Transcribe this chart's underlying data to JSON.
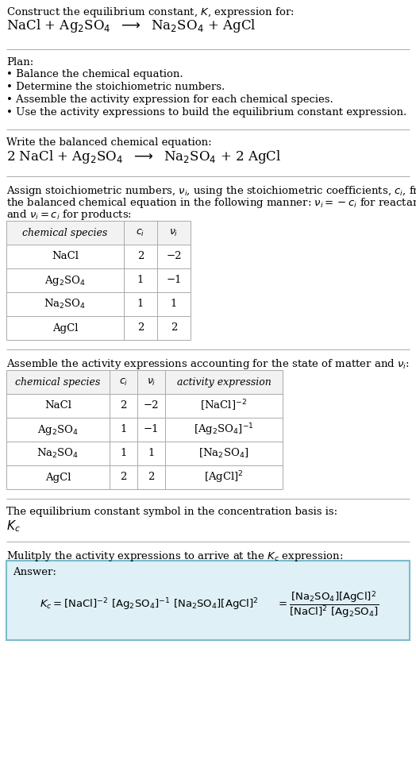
{
  "bg_color": "#ffffff",
  "text_color": "#000000",
  "title_line1": "Construct the equilibrium constant, $K$, expression for:",
  "title_line2": "NaCl + Ag$_2$SO$_4$  $\\longrightarrow$  Na$_2$SO$_4$ + AgCl",
  "plan_header": "Plan:",
  "plan_items": [
    "• Balance the chemical equation.",
    "• Determine the stoichiometric numbers.",
    "• Assemble the activity expression for each chemical species.",
    "• Use the activity expressions to build the equilibrium constant expression."
  ],
  "balanced_header": "Write the balanced chemical equation:",
  "balanced_eq": "2 NaCl + Ag$_2$SO$_4$  $\\longrightarrow$  Na$_2$SO$_4$ + 2 AgCl",
  "stoich_intro_l1": "Assign stoichiometric numbers, $\\nu_i$, using the stoichiometric coefficients, $c_i$, from",
  "stoich_intro_l2": "the balanced chemical equation in the following manner: $\\nu_i = -c_i$ for reactants",
  "stoich_intro_l3": "and $\\nu_i = c_i$ for products:",
  "table1_headers": [
    "chemical species",
    "$c_i$",
    "$\\nu_i$"
  ],
  "table1_rows": [
    [
      "NaCl",
      "2",
      "−2"
    ],
    [
      "Ag$_2$SO$_4$",
      "1",
      "−1"
    ],
    [
      "Na$_2$SO$_4$",
      "1",
      "1"
    ],
    [
      "AgCl",
      "2",
      "2"
    ]
  ],
  "activity_intro": "Assemble the activity expressions accounting for the state of matter and $\\nu_i$:",
  "table2_headers": [
    "chemical species",
    "$c_i$",
    "$\\nu_i$",
    "activity expression"
  ],
  "table2_rows": [
    [
      "NaCl",
      "2",
      "−2",
      "[NaCl]$^{-2}$"
    ],
    [
      "Ag$_2$SO$_4$",
      "1",
      "−1",
      "[Ag$_2$SO$_4$]$^{-1}$"
    ],
    [
      "Na$_2$SO$_4$",
      "1",
      "1",
      "[Na$_2$SO$_4$]"
    ],
    [
      "AgCl",
      "2",
      "2",
      "[AgCl]$^2$"
    ]
  ],
  "kc_intro": "The equilibrium constant symbol in the concentration basis is:",
  "kc_symbol": "$K_c$",
  "multiply_intro": "Mulitply the activity expressions to arrive at the $K_c$ expression:",
  "answer_box_color": "#dff0f7",
  "answer_box_border": "#7bbccc",
  "answer_label": "Answer:",
  "font_size": 9.5,
  "font_size_eq": 12,
  "font_size_header": 9.5,
  "line_color": "#aaaaaa",
  "table_header_color": "#f2f2f2",
  "table_border_color": "#aaaaaa"
}
